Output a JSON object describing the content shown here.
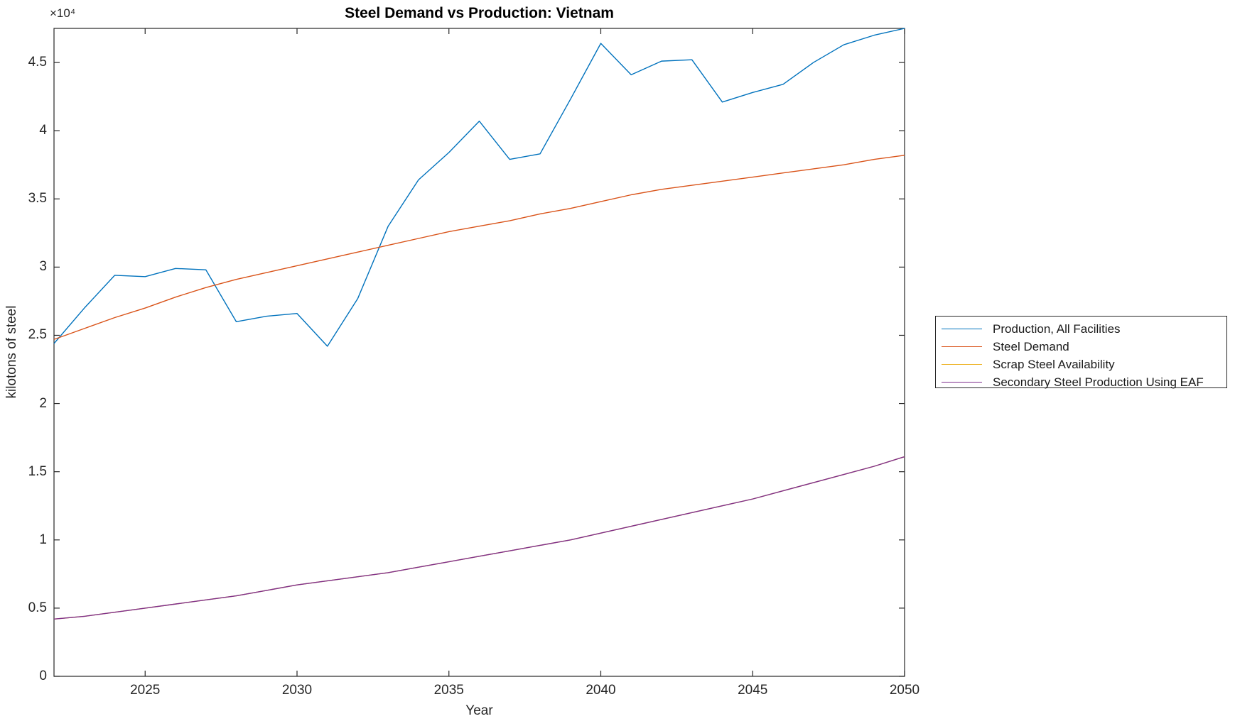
{
  "chart_data": {
    "type": "line",
    "title": "Steel Demand vs Production: Vietnam",
    "xlabel": "Year",
    "ylabel": "kilotons of steel",
    "y_axis_multiplier": "×10⁴",
    "units": "kilotons",
    "grid": false,
    "legend_position": "outside-right",
    "axis_color": "#262626",
    "xlim": [
      2022,
      2050
    ],
    "ylim": [
      0,
      47500
    ],
    "x": [
      2022,
      2023,
      2024,
      2025,
      2026,
      2027,
      2028,
      2029,
      2030,
      2031,
      2032,
      2033,
      2034,
      2035,
      2036,
      2037,
      2038,
      2039,
      2040,
      2041,
      2042,
      2043,
      2044,
      2045,
      2046,
      2047,
      2048,
      2049,
      2050
    ],
    "x_ticks": [
      {
        "value": 2025,
        "label": "2025"
      },
      {
        "value": 2030,
        "label": "2030"
      },
      {
        "value": 2035,
        "label": "2035"
      },
      {
        "value": 2040,
        "label": "2040"
      },
      {
        "value": 2045,
        "label": "2045"
      },
      {
        "value": 2050,
        "label": "2050"
      }
    ],
    "y_ticks": [
      {
        "value": 0,
        "label": "0"
      },
      {
        "value": 5000,
        "label": "0.5"
      },
      {
        "value": 10000,
        "label": "1"
      },
      {
        "value": 15000,
        "label": "1.5"
      },
      {
        "value": 20000,
        "label": "2"
      },
      {
        "value": 25000,
        "label": "2.5"
      },
      {
        "value": 30000,
        "label": "3"
      },
      {
        "value": 35000,
        "label": "3.5"
      },
      {
        "value": 40000,
        "label": "4"
      },
      {
        "value": 45000,
        "label": "4.5"
      }
    ],
    "series": [
      {
        "name": "Production, All Facilities",
        "color": "#0072BD",
        "values": [
          24400,
          27000,
          29400,
          29300,
          29900,
          29800,
          26000,
          26400,
          26600,
          24200,
          27700,
          33000,
          36400,
          38400,
          40700,
          37900,
          38300,
          42300,
          46400,
          44100,
          45100,
          45200,
          42100,
          42800,
          43400,
          45000,
          46300,
          47000,
          47500
        ]
      },
      {
        "name": "Steel Demand",
        "color": "#D95319",
        "values": [
          24700,
          25500,
          26300,
          27000,
          27800,
          28500,
          29100,
          29600,
          30100,
          30600,
          31100,
          31600,
          32100,
          32600,
          33000,
          33400,
          33900,
          34300,
          34800,
          35300,
          35700,
          36000,
          36300,
          36600,
          36900,
          37200,
          37500,
          37900,
          38200
        ]
      },
      {
        "name": "Scrap Steel Availability",
        "color": "#EDB120",
        "values": [
          4200,
          4400,
          4700,
          5000,
          5300,
          5600,
          5900,
          6300,
          6700,
          7000,
          7300,
          7600,
          8000,
          8400,
          8800,
          9200,
          9600,
          10000,
          10500,
          11000,
          11500,
          12000,
          12500,
          13000,
          13600,
          14200,
          14800,
          15400,
          16100
        ]
      },
      {
        "name": "Secondary Steel Production Using EAF",
        "color": "#7E2F8E",
        "values": [
          4200,
          4400,
          4700,
          5000,
          5300,
          5600,
          5900,
          6300,
          6700,
          7000,
          7300,
          7600,
          8000,
          8400,
          8800,
          9200,
          9600,
          10000,
          10500,
          11000,
          11500,
          12000,
          12500,
          13000,
          13600,
          14200,
          14800,
          15400,
          16100
        ]
      }
    ]
  }
}
